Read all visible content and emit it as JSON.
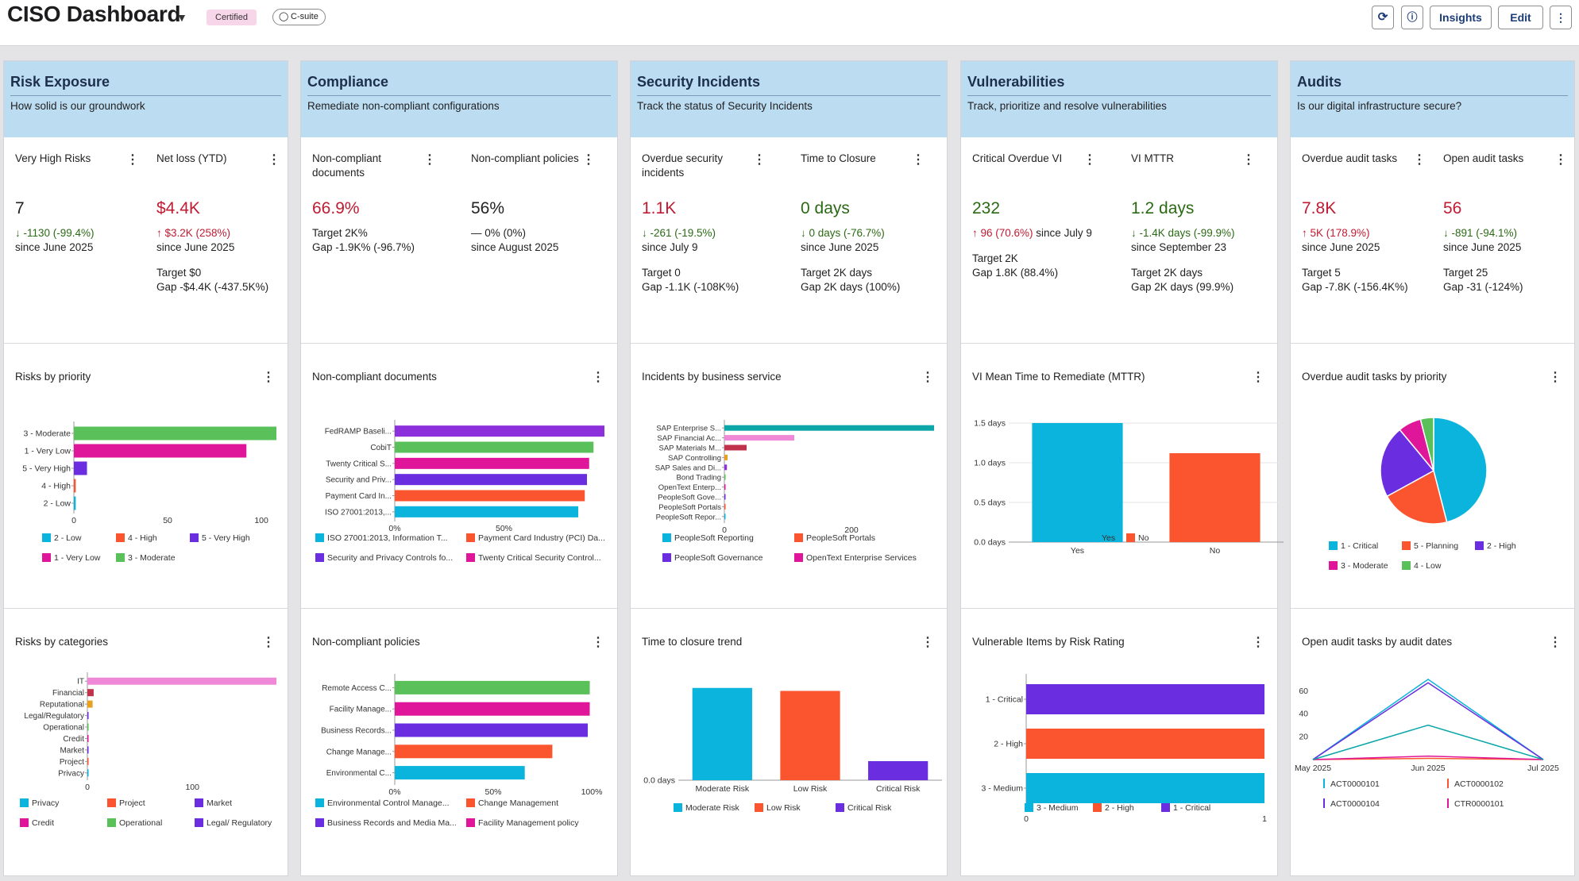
{
  "header": {
    "title": "CISO Dashboard",
    "certified": "Certified",
    "tag": "C-suite",
    "insights_label": "Insights",
    "edit_label": "Edit"
  },
  "colors": {
    "header_bg": "#bcdcf2",
    "red": "#c01b32",
    "green": "#2b6a14",
    "cyan": "#0bb4dc",
    "orange": "#fb5530",
    "purple": "#6a2de0",
    "magenta": "#df169a",
    "lightgreen": "#5ac05a",
    "pink": "#f088d8",
    "crimson": "#c0324c",
    "amber": "#e8a020",
    "teal": "#0aa6a8",
    "violet": "#8c30dc"
  },
  "panels": [
    {
      "title": "Risk Exposure",
      "subtitle": "How solid is our groundwork",
      "kpis": [
        {
          "title": "Very High Risks",
          "value": "7",
          "value_color": "blk",
          "delta": "↓ -1130 (-99.4%)",
          "delta_color": "green",
          "since": "since June 2025",
          "target": "",
          "gap": ""
        },
        {
          "title": "Net loss (YTD)",
          "value": "$4.4K",
          "value_color": "red",
          "delta": "↑ $3.2K (258%)",
          "delta_color": "red",
          "since": "since June 2025",
          "target": "Target $0",
          "gap": "Gap -$4.4K (-437.5K%)"
        }
      ]
    },
    {
      "title": "Compliance",
      "subtitle": "Remediate non-compliant configurations",
      "kpis": [
        {
          "title": "Non-compliant documents",
          "value": "66.9%",
          "value_color": "red",
          "delta": "Target 2K%",
          "delta_color": "blk",
          "since": "Gap -1.9K% (-96.7%)",
          "target": "",
          "gap": ""
        },
        {
          "title": "Non-compliant policies",
          "value": "56%",
          "value_color": "blk",
          "delta": "— 0% (0%)",
          "delta_color": "blk",
          "since": "since August 2025",
          "target": "",
          "gap": ""
        }
      ]
    },
    {
      "title": "Security Incidents",
      "subtitle": "Track the status of Security Incidents",
      "kpis": [
        {
          "title": "Overdue security incidents",
          "value": "1.1K",
          "value_color": "red",
          "delta": "↓ -261 (-19.5%)",
          "delta_color": "green",
          "since": "since July 9",
          "target": "Target 0",
          "gap": "Gap -1.1K (-108K%)"
        },
        {
          "title": "Time to Closure",
          "value": "0 days",
          "value_color": "green",
          "delta": "↓ 0 days (-76.7%)",
          "delta_color": "green",
          "since": "since June 2025",
          "target": "Target 2K days",
          "gap": "Gap 2K days (100%)"
        }
      ]
    },
    {
      "title": "Vulnerabilities",
      "subtitle": "Track, prioritize and resolve vulnerabilities",
      "kpis": [
        {
          "title": "Critical Overdue VI",
          "value": "232",
          "value_color": "green",
          "delta": "↑ 96 (70.6%)",
          "delta_color": "red",
          "delta_extra": " since July 9",
          "since": "",
          "target": "Target 2K",
          "gap": "Gap 1.8K (88.4%)",
          "target_top": true
        },
        {
          "title": "VI MTTR",
          "value": "1.2 days",
          "value_color": "green",
          "delta": "↓ -1.4K days (-99.9%)",
          "delta_color": "green",
          "since": "since September 23",
          "target": "Target 2K days",
          "gap": "Gap 2K days (99.9%)"
        }
      ]
    },
    {
      "title": "Audits",
      "subtitle": "Is our digital infrastructure secure?",
      "kpis": [
        {
          "title": "Overdue audit tasks",
          "value": "7.8K",
          "value_color": "red",
          "delta": "↑ 5K (178.9%)",
          "delta_color": "red",
          "since": "since June 2025",
          "target": "Target 5",
          "gap": "Gap -7.8K (-156.4K%)"
        },
        {
          "title": "Open audit tasks",
          "value": "56",
          "value_color": "red",
          "delta": "↓ -891 (-94.1%)",
          "delta_color": "green",
          "since": "since June 2025",
          "target": "Target 25",
          "gap": "Gap -31 (-124%)"
        }
      ]
    }
  ],
  "chart_data": [
    {
      "id": "c00",
      "title": "Risks by priority",
      "type": "bar",
      "orientation": "horizontal",
      "categories": [
        "3 - Moderate",
        "1 - Very Low",
        "5 - Very High",
        "4 - High",
        "2 - Low"
      ],
      "values": [
        108,
        92,
        7,
        1,
        1
      ],
      "colors": [
        "#5ac05a",
        "#df169a",
        "#6a2de0",
        "#fb5530",
        "#0bb4dc"
      ],
      "ticks": [
        0,
        50,
        100
      ],
      "xmax": 108,
      "legend": [
        {
          "label": "2 - Low",
          "color": "#0bb4dc"
        },
        {
          "label": "4 - High",
          "color": "#fb5530"
        },
        {
          "label": "5 - Very High",
          "color": "#6a2de0"
        },
        {
          "label": "1 - Very Low",
          "color": "#df169a"
        },
        {
          "label": "3 - Moderate",
          "color": "#5ac05a"
        }
      ]
    },
    {
      "id": "c01",
      "title": "Risks by categories",
      "type": "bar",
      "orientation": "horizontal",
      "categories": [
        "IT",
        "Financial",
        "Reputational",
        "Legal/Regulatory",
        "Operational",
        "Credit",
        "Market",
        "Project",
        "Privacy"
      ],
      "values": [
        180,
        6,
        5,
        1,
        1,
        0.6,
        0.5,
        0.5,
        0.4
      ],
      "colors": [
        "#f088d8",
        "#c0324c",
        "#e8a020",
        "#6a2de0",
        "#5ac05a",
        "#df169a",
        "#6a2de0",
        "#fb5530",
        "#0bb4dc"
      ],
      "ticks": [
        0,
        100
      ],
      "xmax": 180,
      "legend": [
        {
          "label": "Privacy",
          "color": "#0bb4dc"
        },
        {
          "label": "Project",
          "color": "#fb5530"
        },
        {
          "label": "Market",
          "color": "#6a2de0"
        },
        {
          "label": "Credit",
          "color": "#df169a"
        },
        {
          "label": "Operational",
          "color": "#5ac05a"
        },
        {
          "label": "Legal/ Regulatory",
          "color": "#6a2de0"
        }
      ]
    },
    {
      "id": "c10",
      "title": "Non-compliant documents",
      "type": "bar",
      "orientation": "horizontal",
      "categories": [
        "FedRAMP Baseli...",
        "CobiT",
        "Twenty Critical S...",
        "Security and Priv...",
        "Payment Card In...",
        "ISO 27001:2013,..."
      ],
      "values": [
        96,
        91,
        89,
        88,
        87,
        84
      ],
      "colors": [
        "#8c30dc",
        "#5ac05a",
        "#df169a",
        "#6a2de0",
        "#fb5530",
        "#0bb4dc"
      ],
      "ticks": [
        "0%",
        "50%"
      ],
      "tickvals": [
        0,
        50
      ],
      "xmax": 96,
      "legend": [
        {
          "label": "ISO 27001:2013, Information T...",
          "color": "#0bb4dc"
        },
        {
          "label": "Payment Card Industry (PCI) Da...",
          "color": "#fb5530"
        },
        {
          "label": "Security and Privacy Controls fo...",
          "color": "#6a2de0"
        },
        {
          "label": "Twenty Critical Security Control...",
          "color": "#df169a"
        }
      ]
    },
    {
      "id": "c11",
      "title": "Non-compliant policies",
      "type": "bar",
      "orientation": "horizontal",
      "categories": [
        "Remote Access C...",
        "Facility Manage...",
        "Business Records...",
        "Change Manage...",
        "Environmental C..."
      ],
      "values": [
        99,
        99,
        98,
        80,
        66
      ],
      "colors": [
        "#5ac05a",
        "#df169a",
        "#6a2de0",
        "#fb5530",
        "#0bb4dc"
      ],
      "ticks": [
        "0%",
        "50%",
        "100%"
      ],
      "tickvals": [
        0,
        50,
        100
      ],
      "xmax": 100,
      "legend": [
        {
          "label": "Environmental Control Manage...",
          "color": "#0bb4dc"
        },
        {
          "label": "Change Management",
          "color": "#fb5530"
        },
        {
          "label": "Business Records and Media Ma...",
          "color": "#6a2de0"
        },
        {
          "label": "Facility Management policy",
          "color": "#df169a"
        }
      ]
    },
    {
      "id": "c20",
      "title": "Incidents by business service",
      "type": "bar",
      "orientation": "horizontal",
      "categories": [
        "SAP Enterprise S...",
        "SAP Financial Ac...",
        "SAP Materials M...",
        "SAP Controlling",
        "SAP Sales and Di...",
        "Bond Trading",
        "OpenText Enterp...",
        "PeopleSoft Gove...",
        "PeopleSoft Portals",
        "PeopleSoft Repor..."
      ],
      "values": [
        330,
        110,
        35,
        5,
        4,
        1,
        1,
        1,
        1,
        1
      ],
      "colors": [
        "#0aa6a8",
        "#f088d8",
        "#c0324c",
        "#e8a020",
        "#8c30dc",
        "#5ac05a",
        "#df169a",
        "#6a2de0",
        "#fb5530",
        "#0bb4dc"
      ],
      "ticks": [
        0,
        200
      ],
      "xmax": 330,
      "legend": [
        {
          "label": "PeopleSoft Reporting",
          "color": "#0bb4dc"
        },
        {
          "label": "PeopleSoft Portals",
          "color": "#fb5530"
        },
        {
          "label": "PeopleSoft Governance",
          "color": "#6a2de0"
        },
        {
          "label": "OpenText Enterprise Services",
          "color": "#df169a"
        }
      ]
    },
    {
      "id": "c21",
      "title": "Time to closure trend",
      "type": "bar",
      "orientation": "vertical",
      "categories": [
        "Moderate Risk",
        "Low Risk",
        "Critical Risk"
      ],
      "values": [
        1.55,
        1.5,
        0.32
      ],
      "ymax": 1.6,
      "colors": [
        "#0bb4dc",
        "#fb5530",
        "#6a2de0"
      ],
      "yticks": [
        "0.0 days"
      ],
      "ytickvals": [
        0
      ],
      "legend": [
        {
          "label": "Moderate Risk",
          "color": "#0bb4dc"
        },
        {
          "label": "Low Risk",
          "color": "#fb5530"
        },
        {
          "label": "Critical Risk",
          "color": "#6a2de0"
        }
      ]
    },
    {
      "id": "c30",
      "title": "VI Mean Time to Remediate (MTTR)",
      "type": "bar",
      "orientation": "vertical",
      "categories": [
        "Yes",
        "No"
      ],
      "values": [
        1.5,
        1.12
      ],
      "ymax": 1.5,
      "colors": [
        "#0bb4dc",
        "#fb5530"
      ],
      "yticks": [
        "1.5 days",
        "1.0 days",
        "0.5 days",
        "0.0 days"
      ],
      "ytickvals": [
        1.5,
        1.0,
        0.5,
        0
      ],
      "legend": [
        {
          "label": "Yes",
          "color": "#0bb4dc"
        },
        {
          "label": "No",
          "color": "#fb5530"
        }
      ]
    },
    {
      "id": "c31",
      "title": "Vulnerable Items by Risk Rating",
      "type": "bar",
      "orientation": "horizontal",
      "categories": [
        "1 - Critical",
        "2 - High",
        "3 - Medium"
      ],
      "values": [
        1,
        1,
        1
      ],
      "colors": [
        "#6a2de0",
        "#fb5530",
        "#0bb4dc"
      ],
      "ticks": [
        0,
        1
      ],
      "xmax": 1,
      "legend": [
        {
          "label": "3 - Medium",
          "color": "#0bb4dc"
        },
        {
          "label": "2 - High",
          "color": "#fb5530"
        },
        {
          "label": "1 - Critical",
          "color": "#6a2de0"
        }
      ]
    },
    {
      "id": "c40",
      "title": "Overdue audit tasks by priority",
      "type": "pie",
      "values": [
        46,
        21,
        22,
        7,
        4
      ],
      "labels": [
        "1 - Critical",
        "5 - Planning",
        "2 - High",
        "3 - Moderate",
        "4 - Low"
      ],
      "colors": [
        "#0bb4dc",
        "#fb5530",
        "#6a2de0",
        "#df169a",
        "#5ac05a"
      ],
      "legend": [
        {
          "label": "1 - Critical",
          "color": "#0bb4dc"
        },
        {
          "label": "5 - Planning",
          "color": "#fb5530"
        },
        {
          "label": "2 - High",
          "color": "#6a2de0"
        },
        {
          "label": "3 - Moderate",
          "color": "#df169a"
        },
        {
          "label": "4 - Low",
          "color": "#5ac05a"
        }
      ]
    },
    {
      "id": "c41",
      "title": "Open audit tasks by audit dates",
      "type": "line",
      "x": [
        "May 2025",
        "Jun 2025",
        "Jul 2025"
      ],
      "yticks": [
        20,
        40,
        60
      ],
      "ymax": 72,
      "series": [
        {
          "name": "ACT0000101",
          "color": "#0bb4dc",
          "values": [
            0,
            70,
            0
          ]
        },
        {
          "name": "ACT0000102",
          "color": "#fb5530",
          "values": [
            0,
            1,
            0
          ]
        },
        {
          "name": "ACT0000104",
          "color": "#6a2de0",
          "values": [
            0,
            67,
            0
          ]
        },
        {
          "name": "CTR0000101",
          "color": "#df169a",
          "values": [
            0,
            3,
            0
          ]
        },
        {
          "name": "",
          "color": "#0aa6a8",
          "values": [
            0,
            30,
            0
          ]
        }
      ],
      "legend": [
        {
          "label": "ACT0000101",
          "color": "#0bb4dc"
        },
        {
          "label": "ACT0000102",
          "color": "#fb5530"
        },
        {
          "label": "ACT0000104",
          "color": "#6a2de0"
        },
        {
          "label": "CTR0000101",
          "color": "#df169a"
        }
      ]
    }
  ]
}
